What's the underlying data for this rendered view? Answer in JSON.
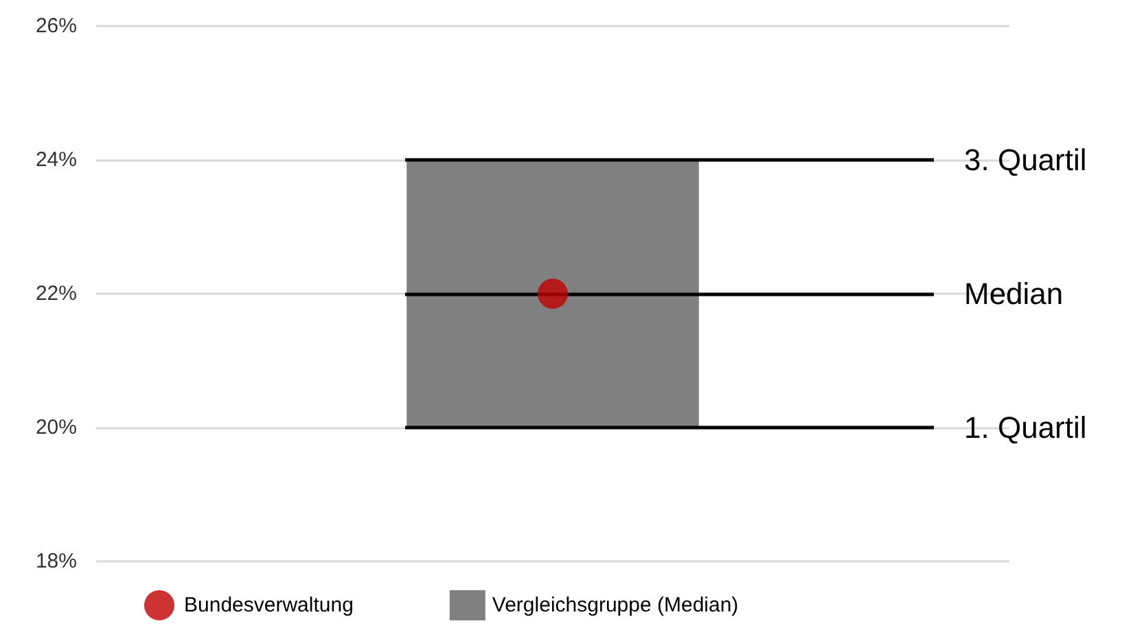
{
  "chart_data": {
    "type": "bar",
    "categories": [
      null
    ],
    "series": [
      {
        "name": "Bundesverwaltung",
        "type": "scatter",
        "color": "#c00000",
        "values": [
          22
        ]
      },
      {
        "name": "Vergleichsgruppe (Median)",
        "type": "bar",
        "color": "#808080",
        "values": [
          4
        ],
        "base": [
          20
        ]
      }
    ],
    "ylim": [
      18,
      26
    ],
    "yticks": [
      {
        "value": 18,
        "label": "18%"
      },
      {
        "value": 20,
        "label": "20%"
      },
      {
        "value": 22,
        "label": "22%"
      },
      {
        "value": 24,
        "label": "24%"
      },
      {
        "value": 26,
        "label": "26%"
      }
    ],
    "grid": "y",
    "legend": "bottom",
    "marker": "circle",
    "ref_lines": [
      {
        "axis": "y",
        "value": 24,
        "label": "3. Quartil",
        "color": "#000000"
      },
      {
        "axis": "y",
        "value": 22,
        "label": "Median",
        "color": "#000000"
      },
      {
        "axis": "y",
        "value": 20,
        "label": "1. Quartil",
        "color": "#000000"
      }
    ]
  }
}
